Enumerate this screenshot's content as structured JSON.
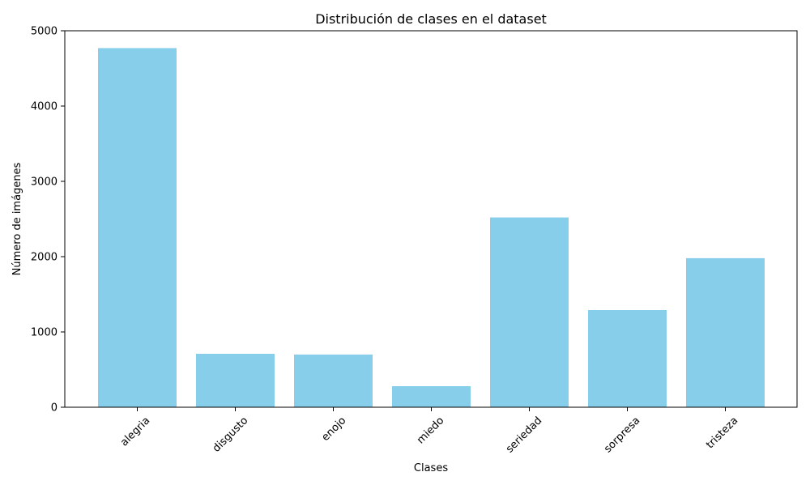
{
  "chart_data": {
    "type": "bar",
    "title": "Distribución de clases en el dataset",
    "xlabel": "Clases",
    "ylabel": "Número de imágenes",
    "categories": [
      "alegria",
      "disgusto",
      "enojo",
      "miedo",
      "seriedad",
      "sorpresa",
      "tristeza"
    ],
    "values": [
      4770,
      710,
      700,
      280,
      2520,
      1290,
      1980
    ],
    "ylim": [
      0,
      5000
    ],
    "yticks": [
      0,
      1000,
      2000,
      3000,
      4000,
      5000
    ],
    "bar_color": "#87ceeb",
    "grid": false,
    "legend": "none"
  }
}
